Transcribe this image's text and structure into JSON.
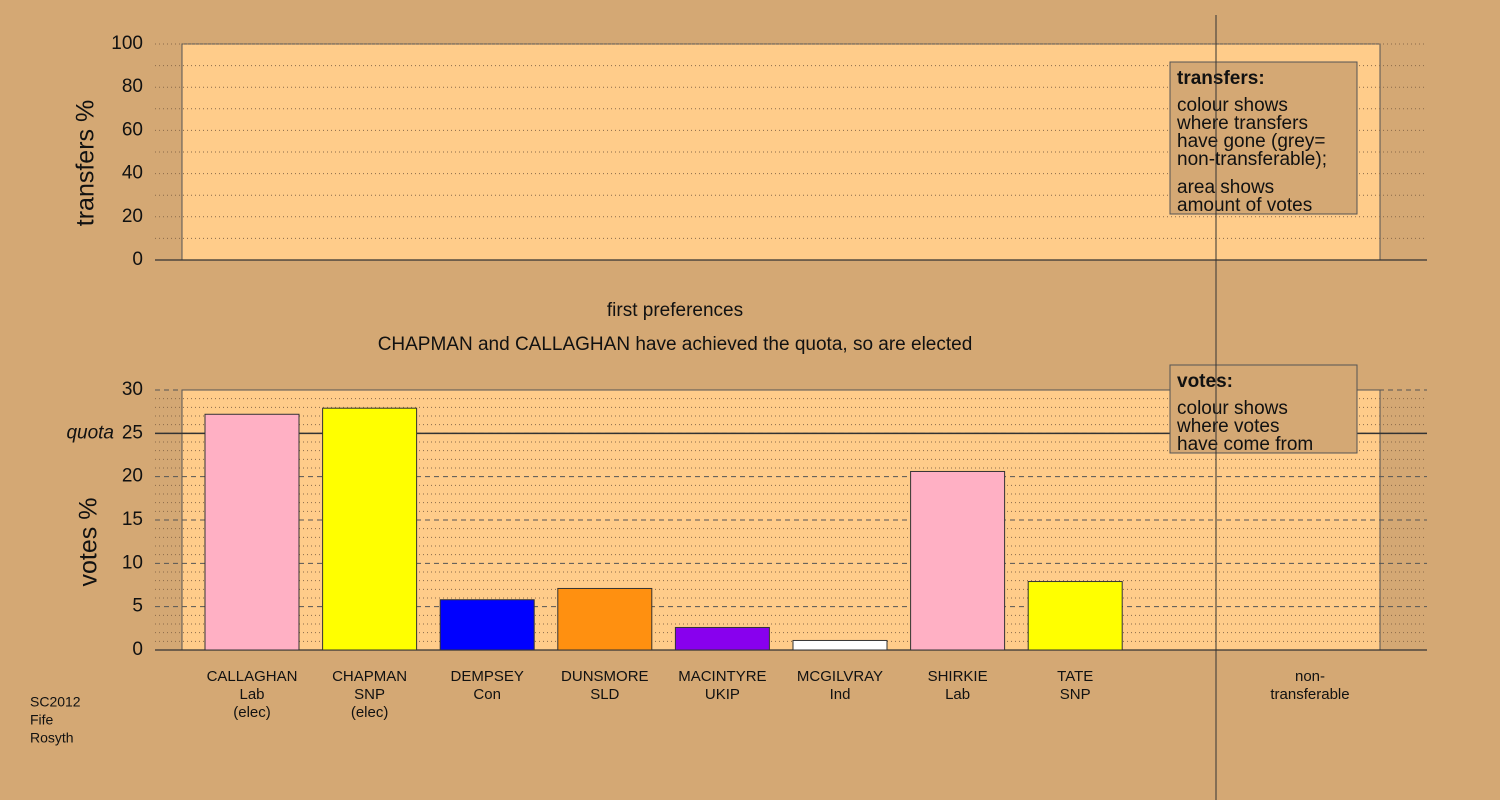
{
  "chart_data": [
    {
      "type": "area",
      "ylabel": "transfers %",
      "ylim": [
        0,
        100
      ],
      "yticks": [
        0,
        20,
        40,
        60,
        80,
        100
      ],
      "grid": true,
      "minor_ticks_per_major": 2,
      "legend": {
        "title": "transfers:",
        "paragraphs": [
          [
            "colour shows",
            "where transfers",
            "have gone (grey=",
            "non-transferable);"
          ],
          [
            "area shows",
            "amount of votes"
          ]
        ]
      }
    },
    {
      "type": "bar",
      "title": "first preferences",
      "subtitle": "CHAPMAN and CALLAGHAN have achieved the quota, so are elected",
      "ylabel": "votes %",
      "ylim": [
        0,
        30
      ],
      "yticks": [
        0,
        5,
        10,
        15,
        20,
        25,
        30
      ],
      "grid": true,
      "minor_ticks_per_major": 5,
      "quota": {
        "value": 25,
        "label": "quota"
      },
      "categories": [
        "CALLAGHAN",
        "CHAPMAN",
        "DEMPSEY",
        "DUNSMORE",
        "MACINTYRE",
        "MCGILVRAY",
        "SHIRKIE",
        "TATE"
      ],
      "parties": [
        "Lab",
        "SNP",
        "Con",
        "SLD",
        "UKIP",
        "Ind",
        "Lab",
        "SNP"
      ],
      "status": [
        "(elec)",
        "(elec)",
        null,
        null,
        null,
        null,
        null,
        null
      ],
      "values": [
        27.2,
        27.9,
        5.8,
        7.1,
        2.6,
        1.1,
        20.6,
        7.9
      ],
      "colors": [
        "#ffb0c4",
        "#ffff00",
        "#0000ff",
        "#ff9010",
        "#8800ee",
        "#ffffff",
        "#ffb0c4",
        "#ffff00"
      ],
      "extra_category": [
        "non-",
        "transferable"
      ],
      "legend": {
        "title": "votes:",
        "paragraphs": [
          [
            "colour shows",
            "where votes",
            "have come from"
          ]
        ]
      }
    }
  ],
  "footnote": [
    "SC2012",
    "Fife",
    "Rosyth"
  ]
}
